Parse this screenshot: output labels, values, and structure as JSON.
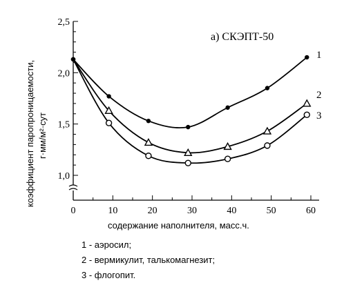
{
  "chart_data": {
    "type": "line",
    "title": "а) СКЭПТ-50",
    "xlabel": "содержание наполнителя, масс.ч.",
    "ylabel_line1": "коэффициент паропроницаемости,",
    "ylabel_line2": "г·мм/м²·сут",
    "xlim": [
      0,
      60
    ],
    "ylim": [
      1.0,
      2.5
    ],
    "x_ticks": [
      0,
      10,
      20,
      30,
      40,
      50,
      60
    ],
    "x_tick_labels": [
      "0",
      "10",
      "20",
      "30",
      "40",
      "50",
      "60"
    ],
    "y_ticks": [
      1.0,
      1.5,
      2.0,
      2.5
    ],
    "y_tick_labels": [
      "1,0",
      "1,5",
      "2,0",
      "2,5"
    ],
    "axis_break": true,
    "series": [
      {
        "name": "1",
        "marker": "filled-circle",
        "x": [
          0,
          9,
          19,
          29,
          39,
          49,
          59
        ],
        "y": [
          2.13,
          1.77,
          1.53,
          1.47,
          1.66,
          1.85,
          2.15
        ]
      },
      {
        "name": "2",
        "marker": "triangle",
        "x": [
          0,
          9,
          19,
          29,
          39,
          49,
          59
        ],
        "y": [
          2.13,
          1.63,
          1.32,
          1.22,
          1.28,
          1.43,
          1.7
        ]
      },
      {
        "name": "3",
        "marker": "open-circle",
        "x": [
          0,
          9,
          19,
          29,
          39,
          49,
          59
        ],
        "y": [
          2.13,
          1.51,
          1.19,
          1.12,
          1.16,
          1.29,
          1.59
        ]
      }
    ],
    "curve_labels": [
      "1",
      "2",
      "3"
    ]
  },
  "notes": [
    "1 - аэросил;",
    "2 - вермикулит, талькомагнезит;",
    "3 - флогопит."
  ]
}
